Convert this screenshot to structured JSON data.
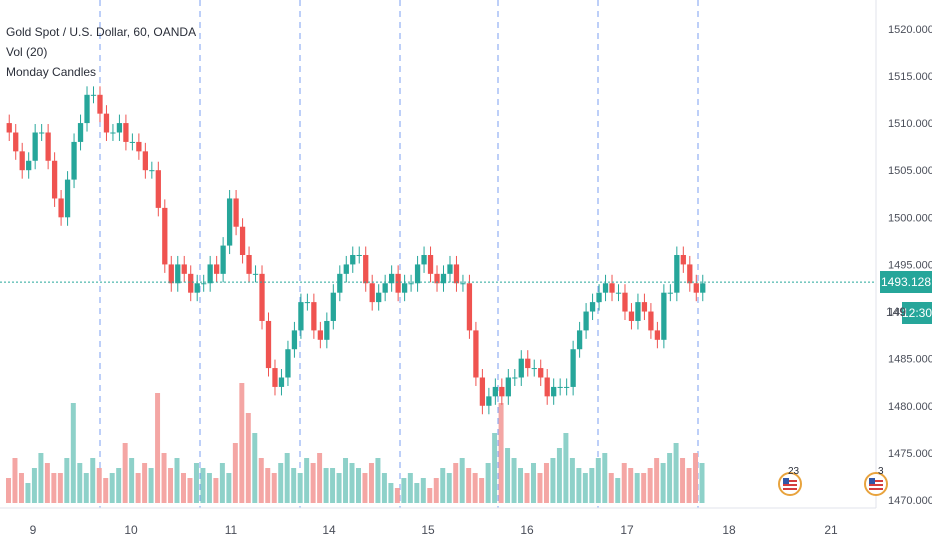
{
  "legend": {
    "symbol_line": "Gold Spot / U.S. Dollar, 60, OANDA",
    "indicator_vol": "Vol (20)",
    "indicator_script": "Monday Candles"
  },
  "last_price": {
    "value": "1493.128",
    "countdown": "12:30",
    "partial_price_label": "149"
  },
  "events": [
    {
      "count_label": "23",
      "icon": "us-flag-icon"
    },
    {
      "count_label": "3",
      "icon": "us-flag-icon"
    }
  ],
  "colors": {
    "up": "#26a69a",
    "down": "#ef5350",
    "up_vol": "#8ed1c9",
    "down_vol": "#f4a6a4",
    "day_line": "#7b9ff0",
    "price_line": "#26a69a",
    "axis_text": "#4a4e59",
    "monday_candle": "#131722"
  },
  "chart_data": {
    "type": "candlestick",
    "title": "Gold Spot / U.S. Dollar, 60, OANDA",
    "ylim": [
      1470,
      1522
    ],
    "y_ticks": [
      "1520.000",
      "1515.000",
      "1510.000",
      "1505.000",
      "1500.000",
      "1495.000",
      "1490.000",
      "1485.000",
      "1480.000",
      "1475.000",
      "1470.000"
    ],
    "x_ticks": [
      "9",
      "10",
      "11",
      "14",
      "15",
      "16",
      "17",
      "18",
      "21"
    ],
    "grid": false,
    "day_markers": [
      "9",
      "10",
      "11",
      "14",
      "15",
      "16",
      "17"
    ],
    "series": [
      {
        "name": "price",
        "segments": [
          [
            1510,
            1509,
            1507,
            1505,
            1506,
            1509
          ],
          [
            1509,
            1506,
            1502,
            1500,
            1504,
            1508,
            1510,
            1513
          ],
          [
            1513,
            1511,
            1509,
            1509,
            1510,
            1508,
            1508,
            1507,
            1505
          ],
          [
            1505,
            1501,
            1495,
            1493,
            1495,
            1494,
            1492,
            1493
          ],
          [
            1493,
            1495,
            1494,
            1497,
            1502,
            1499,
            1496,
            1494
          ],
          [
            1494,
            1489,
            1484,
            1482,
            1483,
            1486,
            1488,
            1491
          ],
          [
            1491,
            1488,
            1487,
            1489,
            1492,
            1494,
            1495,
            1496
          ],
          [
            1496,
            1493,
            1491,
            1492,
            1493,
            1494,
            1492,
            1493
          ],
          [
            1493,
            1495,
            1496,
            1494,
            1493,
            1494,
            1495,
            1493
          ],
          [
            1493,
            1488,
            1483,
            1480,
            1481,
            1482,
            1481,
            1483
          ],
          [
            1483,
            1485,
            1484,
            1484,
            1483,
            1481,
            1482,
            1482
          ],
          [
            1482,
            1486,
            1488,
            1490,
            1491,
            1492,
            1493,
            1492
          ],
          [
            1492,
            1490,
            1489,
            1491,
            1490,
            1488,
            1487,
            1492
          ],
          [
            1492,
            1496,
            1495,
            1493,
            1492,
            1493
          ]
        ]
      }
    ],
    "volume": {
      "name": "Vol (20)",
      "max_label": "",
      "bursts": [
        [
          5,
          9,
          6,
          4,
          7,
          10,
          8,
          6
        ],
        [
          6,
          9,
          20,
          8,
          6,
          9,
          7,
          5,
          6
        ],
        [
          7,
          12,
          9,
          6,
          8,
          7,
          22,
          10,
          7
        ],
        [
          9,
          6,
          5,
          8,
          7,
          6,
          5,
          8
        ],
        [
          6,
          12,
          24,
          18,
          14,
          9,
          7,
          6
        ],
        [
          8,
          10,
          7,
          6,
          9,
          8,
          10,
          7
        ],
        [
          7,
          6,
          9,
          8,
          7,
          6,
          8,
          9
        ],
        [
          6,
          4,
          3,
          5,
          6,
          4,
          5,
          3
        ],
        [
          5,
          7,
          6,
          8,
          9,
          7,
          6,
          5
        ],
        [
          8,
          14,
          20,
          11,
          9,
          7,
          6,
          8
        ],
        [
          6,
          8,
          9,
          11,
          14,
          9,
          7,
          6
        ],
        [
          7,
          9,
          10,
          6,
          5,
          8,
          7,
          6
        ],
        [
          6,
          7,
          9,
          8,
          10,
          12,
          9,
          7
        ],
        [
          10,
          8,
          7,
          5,
          3,
          2
        ]
      ]
    }
  }
}
